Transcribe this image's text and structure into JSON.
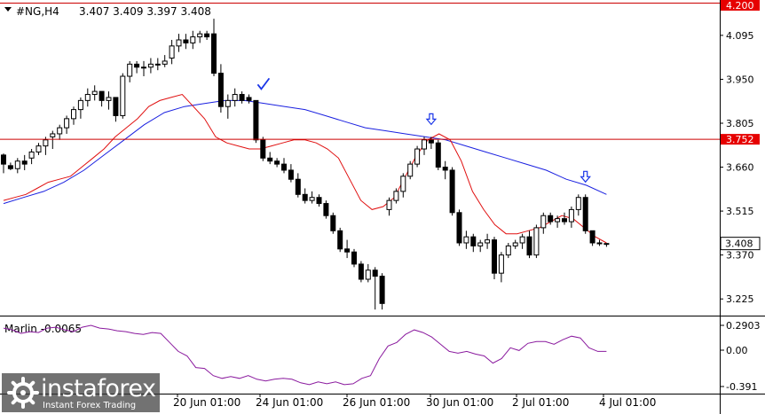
{
  "header": {
    "symbol_label": "#NG,H4",
    "ohlc": "3.407 3.409 3.397 3.408"
  },
  "oscillator": {
    "label": "Marlin -0.0065",
    "scale": [
      "0.2903",
      "0.00",
      "-0.391"
    ]
  },
  "price_axis": {
    "ticks": [
      "4.095",
      "3.950",
      "3.805",
      "3.660",
      "3.515",
      "3.370",
      "3.225"
    ],
    "top_level_label": "4.200",
    "resistance_label": "3.752",
    "current_price_label": "3.408"
  },
  "time_axis": {
    "labels": [
      "20 Jun 01:00",
      "24 Jun 01:00",
      "26 Jun 01:00",
      "30 Jun 01:00",
      "2 Jul 01:00",
      "4 Jul 01:00"
    ]
  },
  "watermark": {
    "name": "instaforex",
    "tagline": "Instant Forex Trading"
  },
  "colors": {
    "up_candle": "#ffffff",
    "down_candle": "#000000",
    "fast_ma": "#e01010",
    "slow_ma": "#1a20e0",
    "oscillator_line": "#8a1a9e",
    "level_line": "#cc0000",
    "level_label_bg": "#e60000",
    "arrow_marker": "#1a35e8"
  },
  "chart_data": {
    "type": "candlestick",
    "symbol": "#NG",
    "timeframe": "H4",
    "ylim": [
      3.17,
      4.2
    ],
    "candles": [
      [
        3.7,
        3.705,
        3.64,
        3.67
      ],
      [
        3.665,
        3.675,
        3.65,
        3.655
      ],
      [
        3.655,
        3.69,
        3.64,
        3.68
      ],
      [
        3.68,
        3.7,
        3.65,
        3.67
      ],
      [
        3.69,
        3.72,
        3.67,
        3.71
      ],
      [
        3.71,
        3.74,
        3.7,
        3.73
      ],
      [
        3.73,
        3.76,
        3.7,
        3.75
      ],
      [
        3.76,
        3.78,
        3.72,
        3.77
      ],
      [
        3.77,
        3.8,
        3.75,
        3.79
      ],
      [
        3.79,
        3.83,
        3.77,
        3.82
      ],
      [
        3.82,
        3.86,
        3.8,
        3.85
      ],
      [
        3.85,
        3.89,
        3.82,
        3.88
      ],
      [
        3.88,
        3.92,
        3.86,
        3.9
      ],
      [
        3.9,
        3.93,
        3.88,
        3.91
      ],
      [
        3.91,
        3.91,
        3.86,
        3.88
      ],
      [
        3.88,
        3.91,
        3.85,
        3.89
      ],
      [
        3.89,
        3.89,
        3.81,
        3.83
      ],
      [
        3.83,
        3.97,
        3.82,
        3.96
      ],
      [
        3.96,
        4.01,
        3.94,
        4.0
      ],
      [
        4.0,
        4.01,
        3.97,
        3.99
      ],
      [
        3.99,
        4.01,
        3.96,
        3.99
      ],
      [
        3.99,
        4.02,
        3.97,
        4.0
      ],
      [
        4.0,
        4.02,
        3.98,
        4.0
      ],
      [
        4.0,
        4.03,
        3.99,
        4.01
      ],
      [
        4.02,
        4.08,
        4.0,
        4.06
      ],
      [
        4.06,
        4.1,
        4.04,
        4.08
      ],
      [
        4.08,
        4.1,
        4.05,
        4.07
      ],
      [
        4.07,
        4.11,
        4.05,
        4.09
      ],
      [
        4.09,
        4.11,
        4.07,
        4.1
      ],
      [
        4.1,
        4.11,
        4.08,
        4.09
      ],
      [
        4.1,
        4.15,
        3.96,
        3.97
      ],
      [
        3.97,
        4.0,
        3.84,
        3.86
      ],
      [
        3.86,
        3.9,
        3.82,
        3.88
      ],
      [
        3.88,
        3.92,
        3.86,
        3.9
      ],
      [
        3.9,
        3.91,
        3.87,
        3.88
      ],
      [
        3.89,
        3.9,
        3.87,
        3.88
      ],
      [
        3.88,
        3.88,
        3.74,
        3.75
      ],
      [
        3.75,
        3.76,
        3.68,
        3.69
      ],
      [
        3.69,
        3.71,
        3.67,
        3.68
      ],
      [
        3.68,
        3.69,
        3.66,
        3.67
      ],
      [
        3.67,
        3.69,
        3.64,
        3.65
      ],
      [
        3.65,
        3.67,
        3.61,
        3.62
      ],
      [
        3.62,
        3.64,
        3.56,
        3.57
      ],
      [
        3.57,
        3.59,
        3.54,
        3.55
      ],
      [
        3.55,
        3.58,
        3.54,
        3.56
      ],
      [
        3.56,
        3.57,
        3.53,
        3.54
      ],
      [
        3.54,
        3.55,
        3.49,
        3.5
      ],
      [
        3.5,
        3.51,
        3.44,
        3.45
      ],
      [
        3.45,
        3.46,
        3.38,
        3.39
      ],
      [
        3.39,
        3.42,
        3.36,
        3.38
      ],
      [
        3.38,
        3.39,
        3.33,
        3.34
      ],
      [
        3.34,
        3.35,
        3.28,
        3.29
      ],
      [
        3.29,
        3.34,
        3.28,
        3.32
      ],
      [
        3.32,
        3.33,
        3.19,
        3.3
      ],
      [
        3.3,
        3.31,
        3.19,
        3.21
      ],
      [
        3.52,
        3.56,
        3.5,
        3.55
      ],
      [
        3.55,
        3.59,
        3.54,
        3.58
      ],
      [
        3.58,
        3.64,
        3.56,
        3.63
      ],
      [
        3.63,
        3.68,
        3.62,
        3.67
      ],
      [
        3.67,
        3.73,
        3.66,
        3.72
      ],
      [
        3.72,
        3.76,
        3.7,
        3.75
      ],
      [
        3.75,
        3.76,
        3.72,
        3.74
      ],
      [
        3.74,
        3.75,
        3.65,
        3.66
      ],
      [
        3.66,
        3.68,
        3.62,
        3.65
      ],
      [
        3.65,
        3.66,
        3.5,
        3.51
      ],
      [
        3.51,
        3.52,
        3.4,
        3.41
      ],
      [
        3.41,
        3.45,
        3.39,
        3.43
      ],
      [
        3.43,
        3.44,
        3.38,
        3.4
      ],
      [
        3.4,
        3.42,
        3.38,
        3.41
      ],
      [
        3.41,
        3.44,
        3.39,
        3.42
      ],
      [
        3.42,
        3.43,
        3.29,
        3.31
      ],
      [
        3.31,
        3.38,
        3.28,
        3.37
      ],
      [
        3.37,
        3.41,
        3.36,
        3.4
      ],
      [
        3.4,
        3.42,
        3.39,
        3.41
      ],
      [
        3.41,
        3.44,
        3.39,
        3.43
      ],
      [
        3.43,
        3.45,
        3.36,
        3.37
      ],
      [
        3.37,
        3.47,
        3.36,
        3.46
      ],
      [
        3.46,
        3.51,
        3.44,
        3.5
      ],
      [
        3.5,
        3.51,
        3.47,
        3.48
      ],
      [
        3.48,
        3.5,
        3.46,
        3.49
      ],
      [
        3.49,
        3.51,
        3.47,
        3.48
      ],
      [
        3.48,
        3.53,
        3.46,
        3.52
      ],
      [
        3.52,
        3.57,
        3.5,
        3.56
      ],
      [
        3.56,
        3.57,
        3.44,
        3.45
      ],
      [
        3.45,
        3.45,
        3.4,
        3.41
      ],
      [
        3.41,
        3.42,
        3.4,
        3.41
      ],
      [
        3.407,
        3.409,
        3.397,
        3.408
      ]
    ],
    "fast_ma": [
      3.55,
      3.56,
      3.57,
      3.59,
      3.61,
      3.62,
      3.63,
      3.66,
      3.69,
      3.72,
      3.76,
      3.79,
      3.82,
      3.86,
      3.88,
      3.89,
      3.9,
      3.86,
      3.82,
      3.76,
      3.74,
      3.73,
      3.72,
      3.72,
      3.73,
      3.74,
      3.75,
      3.75,
      3.74,
      3.72,
      3.69,
      3.62,
      3.55,
      3.52,
      3.53,
      3.56,
      3.63,
      3.7,
      3.75,
      3.77,
      3.75,
      3.68,
      3.58,
      3.52,
      3.47,
      3.44,
      3.44,
      3.45,
      3.46,
      3.48,
      3.5,
      3.49,
      3.46,
      3.43,
      3.41
    ],
    "slow_ma": [
      3.54,
      3.56,
      3.58,
      3.61,
      3.65,
      3.7,
      3.75,
      3.8,
      3.84,
      3.86,
      3.87,
      3.88,
      3.88,
      3.87,
      3.86,
      3.85,
      3.83,
      3.81,
      3.79,
      3.78,
      3.77,
      3.76,
      3.75,
      3.73,
      3.71,
      3.69,
      3.67,
      3.65,
      3.62,
      3.6,
      3.57
    ],
    "levels": [
      {
        "price": 3.752,
        "label": "3.752"
      },
      {
        "price": 4.2,
        "label": "4.200"
      }
    ],
    "annotations": [
      {
        "kind": "check",
        "candle": 36
      },
      {
        "kind": "down-arrow",
        "candle": 61
      },
      {
        "kind": "down-arrow",
        "candle": 83
      }
    ],
    "oscillator": {
      "name": "Marlin",
      "last": -0.0065,
      "ylim": [
        -0.391,
        0.2903
      ],
      "values": [
        0.26,
        0.24,
        0.2,
        0.22,
        0.21,
        0.26,
        0.27,
        0.24,
        0.22,
        0.27,
        0.29,
        0.26,
        0.25,
        0.23,
        0.22,
        0.2,
        0.19,
        0.21,
        0.2,
        0.1,
        0.0,
        -0.05,
        -0.18,
        -0.19,
        -0.27,
        -0.3,
        -0.28,
        -0.3,
        -0.27,
        -0.31,
        -0.33,
        -0.31,
        -0.3,
        -0.31,
        -0.35,
        -0.37,
        -0.34,
        -0.36,
        -0.34,
        -0.37,
        -0.36,
        -0.3,
        -0.27,
        -0.08,
        0.06,
        0.1,
        0.19,
        0.24,
        0.21,
        0.16,
        0.08,
        0.0,
        -0.02,
        0.0,
        -0.03,
        -0.05,
        -0.13,
        -0.08,
        0.04,
        0.01,
        0.09,
        0.11,
        0.11,
        0.08,
        0.13,
        0.17,
        0.15,
        0.04,
        0.0,
        0.0
      ]
    }
  }
}
